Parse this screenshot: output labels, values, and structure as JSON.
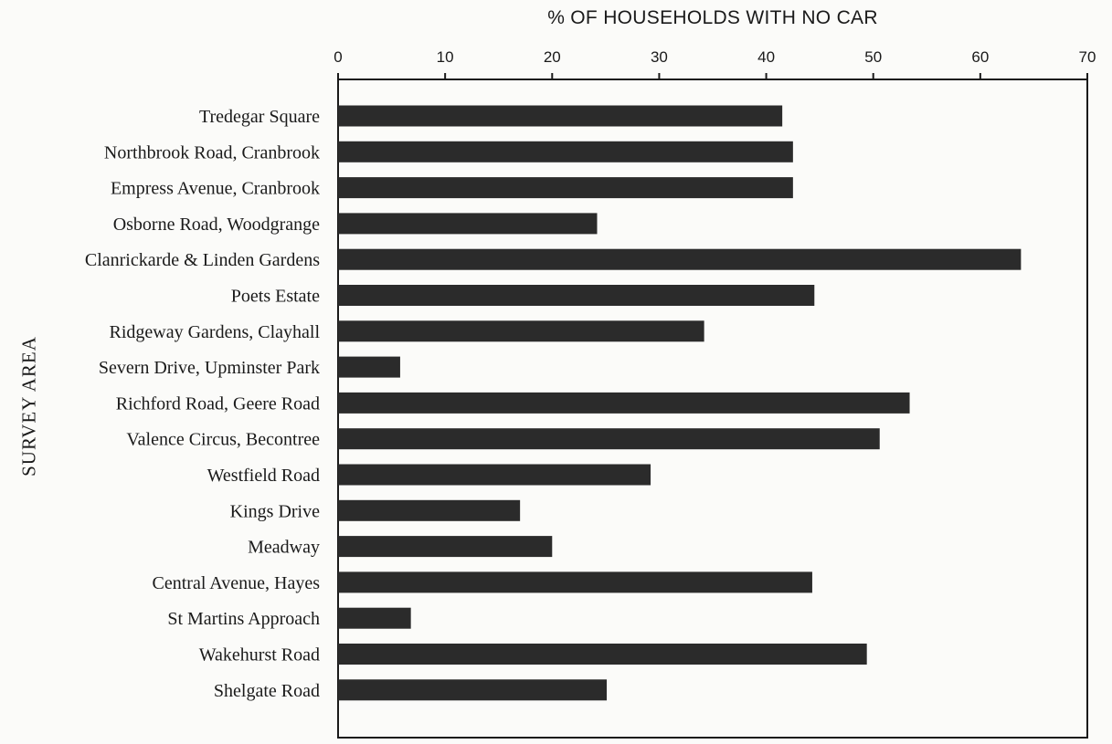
{
  "chart_data": {
    "type": "bar",
    "orientation": "horizontal",
    "title": "",
    "xlabel": "% OF HOUSEHOLDS WITH NO CAR",
    "ylabel": "SURVEY AREA",
    "xlim": [
      0,
      70
    ],
    "xticks": [
      0,
      10,
      20,
      30,
      40,
      50,
      60,
      70
    ],
    "x_axis_position": "top",
    "grid": false,
    "categories": [
      "Tredegar Square",
      "Northbrook Road, Cranbrook",
      "Empress Avenue, Cranbrook",
      "Osborne Road, Woodgrange",
      "Clanrickarde & Linden Gardens",
      "Poets Estate",
      "Ridgeway Gardens, Clayhall",
      "Severn Drive, Upminster Park",
      "Richford Road, Geere Road",
      "Valence Circus, Becontree",
      "Westfield Road",
      "Kings Drive",
      "Meadway",
      "Central Avenue, Hayes",
      "St Martins Approach",
      "Wakehurst Road",
      "Shelgate Road"
    ],
    "values": [
      41.5,
      42.5,
      42.5,
      24.2,
      63.8,
      44.5,
      34.2,
      5.8,
      53.4,
      50.6,
      29.2,
      17.0,
      20.0,
      44.3,
      6.8,
      49.4,
      25.1
    ],
    "bar_color": "#2b2b2b"
  }
}
